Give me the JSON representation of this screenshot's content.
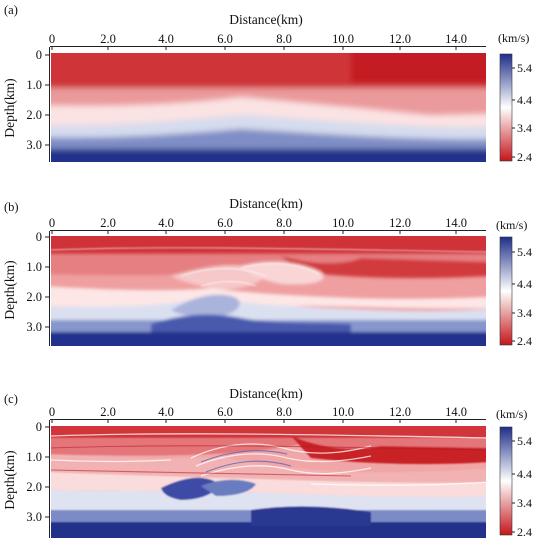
{
  "figure": {
    "panels": [
      {
        "tag": "(a)",
        "x_axis_title": "Distance(km)",
        "y_axis_title": "Depth(km)",
        "x_tick_labels": [
          "0",
          "2.0",
          "4.0",
          "6.0",
          "8.0",
          "10.0",
          "12.0",
          "14.0"
        ],
        "y_tick_labels": [
          "0",
          "1.0",
          "2.0",
          "3.0"
        ],
        "colorbar_unit": "(km/s)",
        "colorbar_tick_labels": [
          "5.4",
          "4.4",
          "3.4",
          "2.4"
        ],
        "model": "smooth"
      },
      {
        "tag": "(b)",
        "x_axis_title": "Distance(km)",
        "y_axis_title": "Depth(km)",
        "x_tick_labels": [
          "0",
          "2.0",
          "4.0",
          "6.0",
          "8.0",
          "10.0",
          "12.0",
          "14.0"
        ],
        "y_tick_labels": [
          "0",
          "1.0",
          "2.0",
          "3.0"
        ],
        "colorbar_unit": "(km/s)",
        "colorbar_tick_labels": [
          "5.4",
          "4.4",
          "3.4",
          "2.4"
        ],
        "model": "intermediate"
      },
      {
        "tag": "(c)",
        "x_axis_title": "Distance(km)",
        "y_axis_title": "Depth(km)",
        "x_tick_labels": [
          "0",
          "2.0",
          "4.0",
          "6.0",
          "8.0",
          "10.0",
          "12.0",
          "14.0"
        ],
        "y_tick_labels": [
          "0",
          "1.0",
          "2.0",
          "3.0"
        ],
        "colorbar_unit": "(km/s)",
        "colorbar_tick_labels": [
          "5.4",
          "4.4",
          "3.4",
          "2.4"
        ],
        "model": "detailed"
      }
    ],
    "colormap": {
      "low_color": "#c4161c",
      "mid_color": "#ffffff",
      "high_color": "#1f2f8a",
      "velocity_range_km_s": [
        2.4,
        5.8
      ]
    }
  }
}
